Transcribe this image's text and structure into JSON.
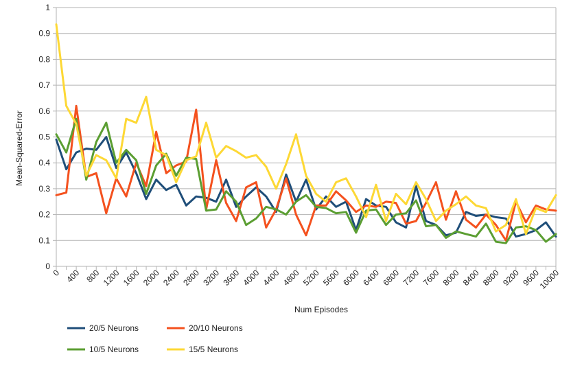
{
  "chart_data": {
    "type": "line",
    "title": "",
    "xlabel": "Num Episodes",
    "ylabel": "Mean-Squared-Error",
    "ylim": [
      0,
      1
    ],
    "yticks": [
      "0",
      "0.1",
      "0.2",
      "0.3",
      "0.4",
      "0.5",
      "0.6",
      "0.7",
      "0.8",
      "0.9",
      "1"
    ],
    "grid": "horizontal",
    "legend_position": "bottom",
    "x": [
      0,
      200,
      400,
      600,
      800,
      1000,
      1200,
      1400,
      1600,
      1800,
      2000,
      2200,
      2400,
      2600,
      2800,
      3000,
      3200,
      3400,
      3600,
      3800,
      4000,
      4200,
      4400,
      4600,
      4800,
      5000,
      5200,
      5400,
      5600,
      5800,
      6000,
      6200,
      6400,
      6600,
      6800,
      7000,
      7200,
      7400,
      7600,
      7800,
      8000,
      8200,
      8400,
      8600,
      8800,
      9000,
      9200,
      9400,
      9600,
      9800,
      10000
    ],
    "xticks": [
      "0",
      "400",
      "800",
      "1200",
      "1600",
      "2000",
      "2400",
      "2800",
      "3200",
      "3600",
      "4000",
      "4400",
      "4800",
      "5200",
      "5600",
      "6000",
      "6400",
      "6800",
      "7200",
      "7600",
      "8000",
      "8400",
      "8800",
      "9200",
      "9600",
      "10000"
    ],
    "series": [
      {
        "name": "20/5 Neurons",
        "color": "#1f4e79",
        "values": [
          0.49,
          0.375,
          0.44,
          0.455,
          0.45,
          0.5,
          0.38,
          0.44,
          0.36,
          0.26,
          0.335,
          0.295,
          0.315,
          0.235,
          0.27,
          0.265,
          0.25,
          0.335,
          0.23,
          0.27,
          0.305,
          0.27,
          0.21,
          0.355,
          0.25,
          0.335,
          0.22,
          0.27,
          0.23,
          0.25,
          0.14,
          0.26,
          0.235,
          0.23,
          0.17,
          0.15,
          0.31,
          0.175,
          0.16,
          0.12,
          0.13,
          0.21,
          0.195,
          0.2,
          0.19,
          0.185,
          0.115,
          0.125,
          0.14,
          0.17,
          0.115
        ]
      },
      {
        "name": "20/10 Neurons",
        "color": "#f4511e",
        "values": [
          0.275,
          0.285,
          0.62,
          0.345,
          0.36,
          0.205,
          0.34,
          0.27,
          0.4,
          0.31,
          0.52,
          0.36,
          0.39,
          0.405,
          0.605,
          0.22,
          0.41,
          0.245,
          0.175,
          0.305,
          0.325,
          0.15,
          0.22,
          0.34,
          0.2,
          0.12,
          0.235,
          0.235,
          0.29,
          0.255,
          0.21,
          0.235,
          0.23,
          0.25,
          0.245,
          0.165,
          0.175,
          0.245,
          0.325,
          0.18,
          0.29,
          0.18,
          0.15,
          0.2,
          0.16,
          0.1,
          0.25,
          0.17,
          0.235,
          0.22,
          0.215
        ]
      },
      {
        "name": "10/5 Neurons",
        "color": "#5b9e32",
        "values": [
          0.51,
          0.44,
          0.57,
          0.335,
          0.48,
          0.555,
          0.4,
          0.45,
          0.41,
          0.28,
          0.39,
          0.435,
          0.35,
          0.42,
          0.415,
          0.215,
          0.22,
          0.29,
          0.25,
          0.16,
          0.185,
          0.23,
          0.22,
          0.2,
          0.25,
          0.275,
          0.23,
          0.225,
          0.205,
          0.21,
          0.13,
          0.215,
          0.22,
          0.16,
          0.2,
          0.205,
          0.255,
          0.155,
          0.16,
          0.11,
          0.135,
          0.125,
          0.115,
          0.165,
          0.095,
          0.09,
          0.15,
          0.155,
          0.14,
          0.095,
          0.125
        ]
      },
      {
        "name": "15/5 Neurons",
        "color": "#fdd835",
        "values": [
          0.935,
          0.62,
          0.55,
          0.35,
          0.43,
          0.41,
          0.34,
          0.57,
          0.555,
          0.655,
          0.45,
          0.43,
          0.325,
          0.41,
          0.425,
          0.555,
          0.42,
          0.465,
          0.445,
          0.42,
          0.43,
          0.385,
          0.3,
          0.395,
          0.51,
          0.35,
          0.28,
          0.25,
          0.325,
          0.34,
          0.27,
          0.19,
          0.315,
          0.175,
          0.28,
          0.24,
          0.325,
          0.26,
          0.175,
          0.215,
          0.24,
          0.27,
          0.235,
          0.225,
          0.135,
          0.16,
          0.26,
          0.125,
          0.225,
          0.21,
          0.275
        ]
      }
    ]
  }
}
